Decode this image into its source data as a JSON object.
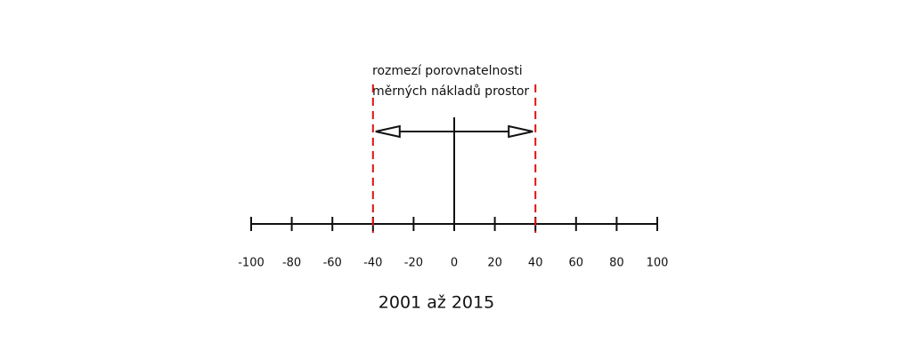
{
  "annotation": {
    "lines": [
      "rozmezí porovnatelnosti",
      "měrných nákladů prostor"
    ]
  },
  "axis": {
    "ticks": [
      -100,
      -80,
      -60,
      -40,
      -20,
      0,
      20,
      40,
      60,
      80,
      100
    ]
  },
  "range": [
    -40,
    40
  ],
  "caption": "2001 až 2015"
}
